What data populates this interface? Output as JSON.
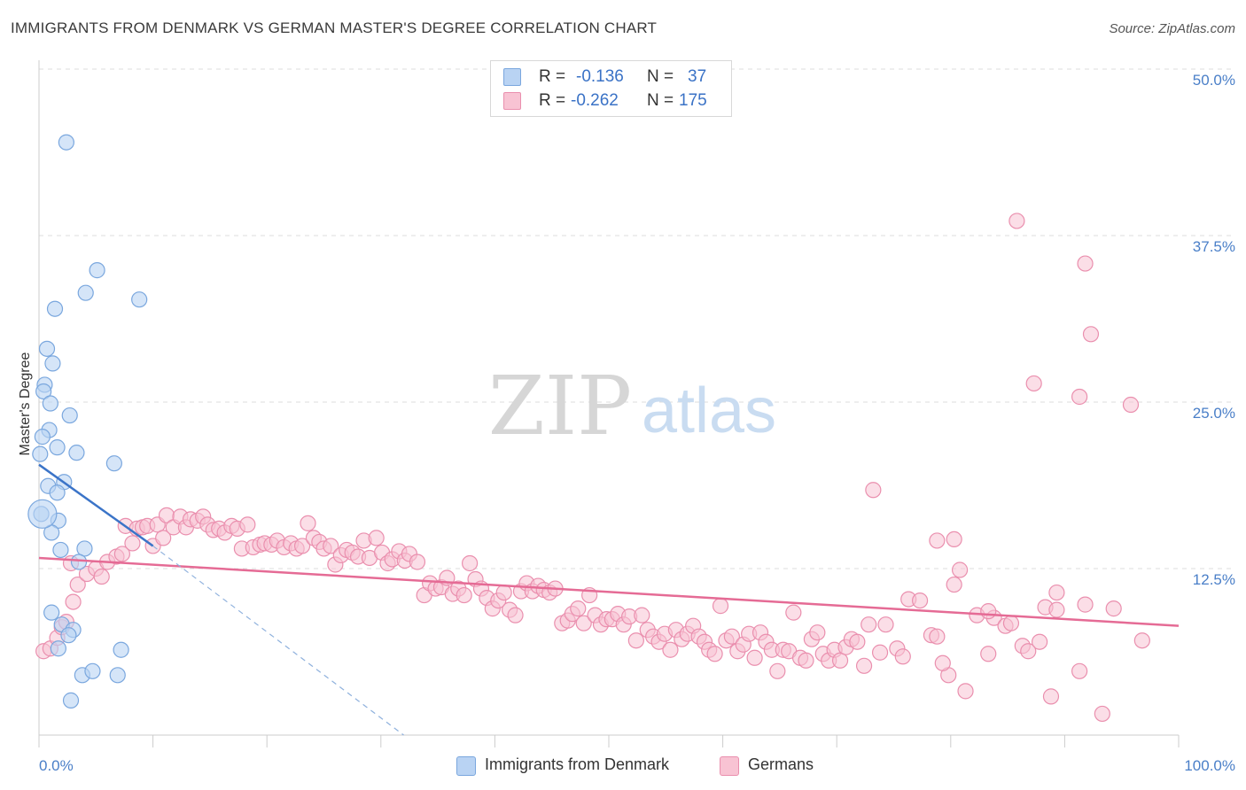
{
  "title": "IMMIGRANTS FROM DENMARK VS GERMAN MASTER'S DEGREE CORRELATION CHART",
  "source": "Source: ZipAtlas.com",
  "watermark": {
    "zip": "ZIP",
    "atlas": "atlas"
  },
  "colors": {
    "blue_fill": "#b9d3f3",
    "blue_stroke": "#7aa7de",
    "blue_line": "#3b74c8",
    "pink_fill": "#f8c3d3",
    "pink_stroke": "#ea8fae",
    "pink_line": "#e56b95",
    "tick_text": "#4a7fc8",
    "grid": "#dcdcdc"
  },
  "legend": {
    "rows": [
      {
        "r_label": "R =",
        "r_value": "-0.136",
        "n_label": "N =",
        "n_value": "37",
        "series": "blue"
      },
      {
        "r_label": "R =",
        "r_value": "-0.262",
        "n_label": "N =",
        "n_value": "175",
        "series": "pink"
      }
    ]
  },
  "bottom_legend": {
    "blue": "Immigrants from Denmark",
    "pink": "Germans"
  },
  "chart_data": {
    "type": "scatter",
    "title": "IMMIGRANTS FROM DENMARK VS GERMAN MASTER'S DEGREE CORRELATION CHART",
    "xlabel": "",
    "ylabel": "Master's Degree",
    "xlim": [
      0,
      100
    ],
    "ylim": [
      0,
      50
    ],
    "x_tick_labels": [
      "0.0%",
      "100.0%"
    ],
    "y_ticks": [
      12.5,
      25.0,
      37.5,
      50.0
    ],
    "y_tick_labels": [
      "12.5%",
      "25.0%",
      "37.5%",
      "50.0%"
    ],
    "series": [
      {
        "name": "Immigrants from Denmark",
        "color": "blue",
        "r": -0.136,
        "n": 37,
        "trend": {
          "x": [
            0,
            10
          ],
          "y": [
            20.3,
            14.2
          ]
        },
        "trend_dashed_extension": {
          "x": [
            10,
            32
          ],
          "y": [
            14.2,
            0
          ]
        },
        "points": [
          [
            2.4,
            44.5
          ],
          [
            5.1,
            34.9
          ],
          [
            4.1,
            33.2
          ],
          [
            1.4,
            32.0
          ],
          [
            8.8,
            32.7
          ],
          [
            0.7,
            29.0
          ],
          [
            1.2,
            27.9
          ],
          [
            0.5,
            26.3
          ],
          [
            0.4,
            25.8
          ],
          [
            1.0,
            24.9
          ],
          [
            2.7,
            24.0
          ],
          [
            0.9,
            22.9
          ],
          [
            0.3,
            22.4
          ],
          [
            1.6,
            21.6
          ],
          [
            3.3,
            21.2
          ],
          [
            0.1,
            21.1
          ],
          [
            6.6,
            20.4
          ],
          [
            2.2,
            19.0
          ],
          [
            0.8,
            18.7
          ],
          [
            1.6,
            18.2
          ],
          [
            0.2,
            16.6
          ],
          [
            1.7,
            16.1
          ],
          [
            1.1,
            15.2
          ],
          [
            1.9,
            13.9
          ],
          [
            4.0,
            14.0
          ],
          [
            3.5,
            13.0
          ],
          [
            1.1,
            9.2
          ],
          [
            2.0,
            8.3
          ],
          [
            3.0,
            7.9
          ],
          [
            2.6,
            7.5
          ],
          [
            1.7,
            6.5
          ],
          [
            7.2,
            6.4
          ],
          [
            3.8,
            4.5
          ],
          [
            4.7,
            4.8
          ],
          [
            6.9,
            4.5
          ],
          [
            2.8,
            2.6
          ],
          [
            0.3,
            16.6
          ]
        ]
      },
      {
        "name": "Germans",
        "color": "pink",
        "r": -0.262,
        "n": 175,
        "trend": {
          "x": [
            0,
            100
          ],
          "y": [
            13.3,
            8.2
          ]
        },
        "points": [
          [
            0.4,
            6.3
          ],
          [
            1.0,
            6.5
          ],
          [
            1.6,
            7.3
          ],
          [
            2.0,
            8.1
          ],
          [
            2.4,
            8.5
          ],
          [
            3.0,
            10.0
          ],
          [
            3.4,
            11.3
          ],
          [
            2.8,
            12.9
          ],
          [
            4.2,
            12.1
          ],
          [
            5.0,
            12.5
          ],
          [
            5.5,
            11.9
          ],
          [
            6.0,
            13.0
          ],
          [
            6.8,
            13.4
          ],
          [
            7.3,
            13.6
          ],
          [
            7.6,
            15.7
          ],
          [
            8.2,
            14.4
          ],
          [
            8.6,
            15.5
          ],
          [
            9.1,
            15.6
          ],
          [
            9.5,
            15.7
          ],
          [
            10.0,
            14.2
          ],
          [
            10.4,
            15.8
          ],
          [
            10.9,
            14.8
          ],
          [
            11.2,
            16.5
          ],
          [
            11.8,
            15.6
          ],
          [
            12.4,
            16.4
          ],
          [
            12.9,
            15.6
          ],
          [
            13.3,
            16.2
          ],
          [
            13.9,
            16.1
          ],
          [
            14.4,
            16.4
          ],
          [
            14.8,
            15.8
          ],
          [
            15.3,
            15.4
          ],
          [
            15.8,
            15.5
          ],
          [
            16.3,
            15.2
          ],
          [
            16.9,
            15.7
          ],
          [
            17.4,
            15.5
          ],
          [
            17.8,
            14.0
          ],
          [
            18.3,
            15.8
          ],
          [
            18.8,
            14.1
          ],
          [
            19.4,
            14.3
          ],
          [
            19.8,
            14.4
          ],
          [
            20.4,
            14.3
          ],
          [
            20.9,
            14.6
          ],
          [
            21.5,
            14.1
          ],
          [
            22.1,
            14.4
          ],
          [
            22.6,
            14.0
          ],
          [
            23.1,
            14.2
          ],
          [
            23.6,
            15.9
          ],
          [
            24.1,
            14.8
          ],
          [
            24.6,
            14.5
          ],
          [
            25.0,
            14.0
          ],
          [
            25.6,
            14.2
          ],
          [
            26.0,
            12.8
          ],
          [
            26.5,
            13.5
          ],
          [
            27.0,
            13.9
          ],
          [
            27.5,
            13.7
          ],
          [
            28.0,
            13.4
          ],
          [
            28.5,
            14.6
          ],
          [
            29.0,
            13.3
          ],
          [
            29.6,
            14.8
          ],
          [
            30.1,
            13.7
          ],
          [
            30.6,
            12.9
          ],
          [
            31.0,
            13.2
          ],
          [
            31.6,
            13.8
          ],
          [
            32.1,
            13.1
          ],
          [
            32.5,
            13.6
          ],
          [
            33.2,
            13.0
          ],
          [
            33.8,
            10.5
          ],
          [
            34.3,
            11.4
          ],
          [
            34.8,
            11.0
          ],
          [
            35.3,
            11.1
          ],
          [
            35.8,
            11.8
          ],
          [
            36.3,
            10.6
          ],
          [
            36.8,
            11.0
          ],
          [
            37.3,
            10.5
          ],
          [
            37.8,
            12.9
          ],
          [
            38.3,
            11.7
          ],
          [
            38.8,
            11.0
          ],
          [
            39.3,
            10.3
          ],
          [
            39.8,
            9.5
          ],
          [
            40.3,
            10.1
          ],
          [
            40.8,
            10.7
          ],
          [
            41.3,
            9.4
          ],
          [
            41.8,
            9.0
          ],
          [
            42.3,
            10.8
          ],
          [
            42.8,
            11.4
          ],
          [
            43.3,
            10.8
          ],
          [
            43.8,
            11.2
          ],
          [
            44.3,
            10.9
          ],
          [
            44.8,
            10.7
          ],
          [
            45.3,
            11.0
          ],
          [
            45.9,
            8.4
          ],
          [
            46.4,
            8.6
          ],
          [
            46.8,
            9.1
          ],
          [
            47.3,
            9.5
          ],
          [
            47.8,
            8.4
          ],
          [
            48.3,
            10.5
          ],
          [
            48.8,
            9.0
          ],
          [
            49.3,
            8.3
          ],
          [
            49.8,
            8.7
          ],
          [
            50.3,
            8.7
          ],
          [
            50.8,
            9.1
          ],
          [
            51.3,
            8.3
          ],
          [
            51.8,
            8.9
          ],
          [
            52.4,
            7.1
          ],
          [
            52.9,
            9.0
          ],
          [
            53.4,
            7.9
          ],
          [
            53.9,
            7.4
          ],
          [
            54.4,
            7.0
          ],
          [
            54.9,
            7.6
          ],
          [
            55.4,
            6.4
          ],
          [
            55.9,
            7.9
          ],
          [
            56.4,
            7.2
          ],
          [
            56.9,
            7.6
          ],
          [
            57.4,
            8.2
          ],
          [
            57.9,
            7.4
          ],
          [
            58.4,
            7.0
          ],
          [
            58.8,
            6.4
          ],
          [
            59.3,
            6.1
          ],
          [
            59.8,
            9.7
          ],
          [
            60.3,
            7.1
          ],
          [
            60.8,
            7.4
          ],
          [
            61.3,
            6.3
          ],
          [
            61.8,
            6.8
          ],
          [
            62.3,
            7.6
          ],
          [
            62.8,
            5.8
          ],
          [
            63.3,
            7.7
          ],
          [
            63.8,
            7.0
          ],
          [
            64.3,
            6.4
          ],
          [
            64.8,
            4.8
          ],
          [
            65.3,
            6.4
          ],
          [
            65.8,
            6.3
          ],
          [
            66.2,
            9.2
          ],
          [
            66.8,
            5.8
          ],
          [
            67.3,
            5.6
          ],
          [
            67.8,
            7.2
          ],
          [
            68.3,
            7.7
          ],
          [
            68.8,
            6.1
          ],
          [
            69.3,
            5.6
          ],
          [
            69.8,
            6.4
          ],
          [
            70.3,
            5.6
          ],
          [
            70.8,
            6.6
          ],
          [
            71.3,
            7.2
          ],
          [
            71.8,
            7.0
          ],
          [
            72.4,
            5.2
          ],
          [
            72.8,
            8.3
          ],
          [
            73.2,
            18.4
          ],
          [
            73.8,
            6.2
          ],
          [
            74.3,
            8.3
          ],
          [
            75.3,
            6.5
          ],
          [
            75.8,
            5.9
          ],
          [
            76.3,
            10.2
          ],
          [
            77.3,
            10.1
          ],
          [
            78.3,
            7.5
          ],
          [
            78.8,
            7.4
          ],
          [
            79.8,
            4.5
          ],
          [
            79.3,
            5.4
          ],
          [
            80.3,
            11.3
          ],
          [
            80.8,
            12.4
          ],
          [
            81.3,
            3.3
          ],
          [
            82.3,
            9.0
          ],
          [
            83.3,
            6.1
          ],
          [
            83.8,
            8.8
          ],
          [
            84.8,
            8.2
          ],
          [
            85.3,
            8.4
          ],
          [
            86.3,
            6.7
          ],
          [
            87.8,
            7.0
          ],
          [
            88.8,
            2.9
          ],
          [
            89.3,
            10.7
          ],
          [
            91.3,
            4.8
          ],
          [
            91.8,
            9.8
          ],
          [
            92.3,
            30.1
          ],
          [
            93.3,
            1.6
          ],
          [
            94.3,
            9.5
          ],
          [
            96.8,
            7.1
          ],
          [
            85.8,
            38.6
          ],
          [
            87.3,
            26.4
          ],
          [
            91.8,
            35.4
          ],
          [
            91.3,
            25.4
          ],
          [
            95.8,
            24.8
          ],
          [
            78.8,
            14.6
          ],
          [
            80.3,
            14.7
          ],
          [
            83.3,
            9.3
          ],
          [
            86.8,
            6.3
          ],
          [
            88.3,
            9.6
          ],
          [
            89.3,
            9.4
          ]
        ]
      }
    ]
  }
}
